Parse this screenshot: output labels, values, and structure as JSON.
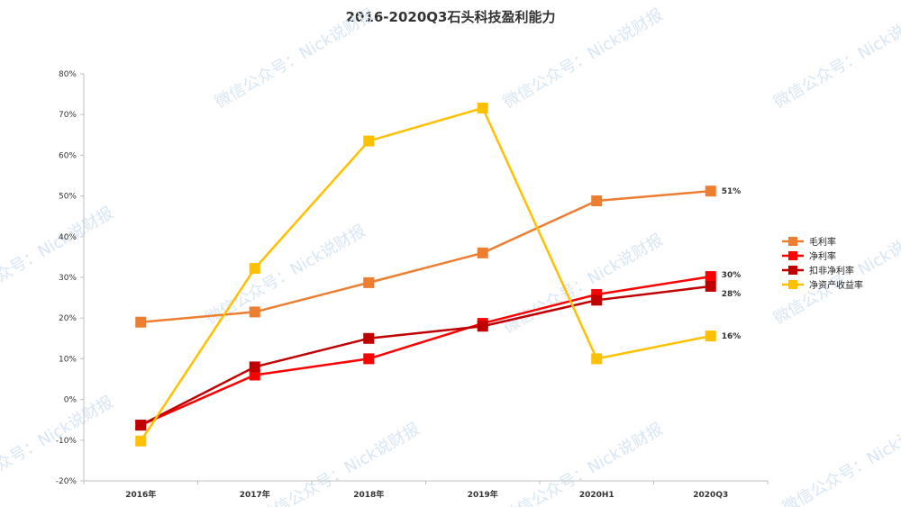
{
  "chart_data": {
    "type": "line",
    "title": "2016-2020Q3石头科技盈利能力",
    "categories": [
      "2016年",
      "2017年",
      "2018年",
      "2019年",
      "2020H1",
      "2020Q3"
    ],
    "y_ticks": [
      "80%",
      "70%",
      "60%",
      "50%",
      "40%",
      "30%",
      "20%",
      "10%",
      "0%",
      "-10%",
      "-20%"
    ],
    "ylim": [
      -20,
      80
    ],
    "grid": false,
    "legend_position": "right",
    "series": [
      {
        "name": "毛利率",
        "color": "#ED7D31",
        "values": [
          19,
          21.5,
          28.7,
          36,
          48.8,
          51.2
        ],
        "end_label": "51%"
      },
      {
        "name": "净利率",
        "color": "#FF0000",
        "values": [
          -6.3,
          6,
          10,
          18.7,
          25.8,
          30.2
        ],
        "end_label": "30%"
      },
      {
        "name": "扣非净利率",
        "color": "#C00000",
        "values": [
          -6.3,
          8,
          15,
          18,
          24.4,
          27.8
        ],
        "end_label": "28%"
      },
      {
        "name": "净资产收益率",
        "color": "#FFC000",
        "values": [
          -10.2,
          32.2,
          63.5,
          71.6,
          10,
          15.6
        ],
        "end_label": "16%"
      }
    ]
  },
  "watermark": "微信公众号：Nick说财报"
}
